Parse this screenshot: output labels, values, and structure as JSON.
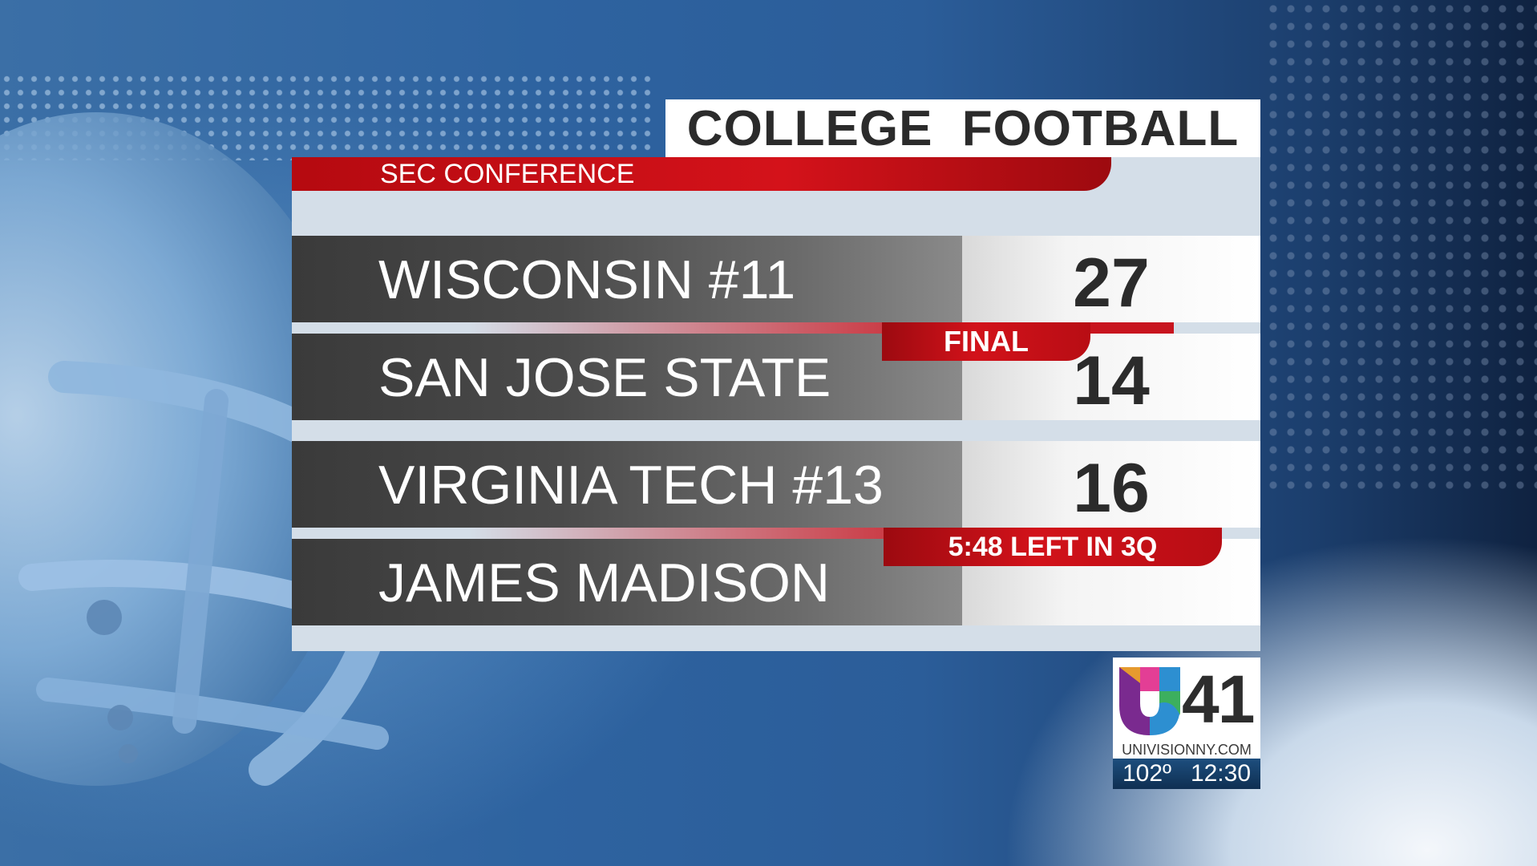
{
  "graphic": {
    "title": "COLLEGE FOOTBALL",
    "conference": "SEC CONFERENCE"
  },
  "games": [
    {
      "status": "FINAL",
      "teams": [
        {
          "name": "WISCONSIN #11",
          "score": "27"
        },
        {
          "name": "SAN JOSE STATE",
          "score": "14"
        }
      ]
    },
    {
      "status": "5:48 LEFT IN 3Q",
      "teams": [
        {
          "name": "VIRGINIA TECH #13",
          "score": "16"
        },
        {
          "name": "JAMES MADISON",
          "score": ""
        }
      ]
    }
  ],
  "station": {
    "channel": "41",
    "website": "UNIVISIONNY.COM",
    "temperature": "102º",
    "time": "12:30"
  },
  "colors": {
    "accent_red": "#c8141e",
    "background_blue": "#2e63a0",
    "text_dark": "#2b2b2b"
  },
  "icons": {
    "background_art": "football-helmet-icon",
    "station_logo": "univision-logo-icon"
  }
}
